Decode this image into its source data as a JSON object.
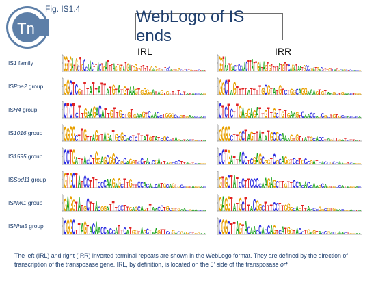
{
  "figure": {
    "label": "Fig. IS1.4",
    "logo_text": "Tn",
    "title": "WebLogo of IS ends"
  },
  "columns": {
    "irl": "IRL",
    "irr": "IRR"
  },
  "rows": [
    {
      "pre": "IS",
      "it": "1",
      "post": " family",
      "irl": "GGTGATGCTGCCAACTTACTGATTTAGTGTATGATGGTGTTTTTGAGGTGCTCCAGTGGCTTCTGTTTCTAT",
      "irr": "GGTAATGACTCCAACTTATTGATAGTGTTTTATGTTCAGATAATGCCCGATGACTTTGTCATGCAGCTCCACCG"
    },
    {
      "pre": "IS",
      "it": "Pna2",
      "post": " group",
      "irl": "GGCTCGTTTATTATTATGTATGTAAGTGGGGATAGTGTTTTCTATACCAG",
      "irr": "GGCTAGTTTTATTTTGCGTATGTCTGGCAGGAAAGTGTAAGCTGAACTGG"
    },
    {
      "pre": "IS",
      "it": "H4",
      "post": " group",
      "irl": "CTCTCTTGAAGACATTGTTGCTGTGAAGTCAACCTGGGCCGTGAACCAC",
      "irr": "CTCTCTTGAGGAGATTGTTGCTGTGAAGTCAACCAGCGCTGTGCCACCCA"
    },
    {
      "pre": "IS",
      "it": "1016",
      "post": " group",
      "irl": "GGGGCTTGTTAGTTAGATGCGCACTCTTATGTATCGCCTAGATACTGCTA",
      "irr": "GGGGCTTGCTAGTTATATGCGCAAAGTGTTATGCACCTAGTTGATCTTAT"
    },
    {
      "pre": "IS",
      "it": "1595",
      "post": " group",
      "irl": "CCTGATTACCTGGAGCGGCCGCAGGTCCTACCGATTAGCCCTTAGTCAGG",
      "irr": "CCTGATTACCTCGAGCGGTCGCAGGTCCTGCCGATCACCGCCAAGTCAGG"
    },
    {
      "pre": "IS",
      "it": "Sod11",
      "post": " group",
      "irl": "GTGCTATCCTTTCCCAAGAGCTTGTTCCACACCATGCAGTGCCGTAGGAC",
      "irr": "GTGCTATCCTTCCCCAAGAGCTTGTTCCACACCAAGCAGTGCCATAGGAC"
    },
    {
      "pre": "IS",
      "it": "Nwi1",
      "post": " group",
      "irl": "GAGGTATGCTTACGGATTTCCTTGAGCAGTTAACCTGCGTGAACGAACCA",
      "irr": "GAGGTATGCTTACGGCTTTCCTTGGGCAGTTAACCGGCGTGAACGGACTA"
    },
    {
      "pre": "IS",
      "it": "Nha5",
      "post": " group",
      "irl": "CGGCTTAGTACAACCACCATTCATGGTAGCTAAGTTCCGACGAGCTGGAA",
      "irr": "CGGCTTAGTACAACCACCAGTCATGGTACCTGAGTACCGACGAACTGGAA"
    }
  ],
  "nucleotide_colors": {
    "A": "#19a219",
    "C": "#2a2ae0",
    "G": "#e8a000",
    "T": "#e02020"
  },
  "caption": {
    "part1": "The left (IRL) and right (IRR) inverted terminal repeats are shown in the WebLogo format. They are defined by the direction of transcription of the transposase gene. IRL, by definition, is located on the 5’ side of the transposase ",
    "part2": "orf",
    "part3": "."
  }
}
